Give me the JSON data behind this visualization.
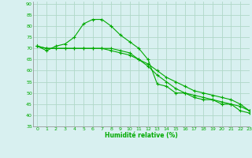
{
  "xlabel": "Humidité relative (%)",
  "bg_color": "#d8f0f0",
  "grid_color": "#b0d8c8",
  "line_color": "#00aa00",
  "xlim": [
    -0.5,
    23
  ],
  "ylim": [
    35,
    91
  ],
  "yticks": [
    35,
    40,
    45,
    50,
    55,
    60,
    65,
    70,
    75,
    80,
    85,
    90
  ],
  "xticks": [
    0,
    1,
    2,
    3,
    4,
    5,
    6,
    7,
    8,
    9,
    10,
    11,
    12,
    13,
    14,
    15,
    16,
    17,
    18,
    19,
    20,
    21,
    22,
    23
  ],
  "series1": [
    71,
    69,
    71,
    72,
    75,
    81,
    83,
    83,
    80,
    76,
    73,
    70,
    65,
    54,
    53,
    50,
    50,
    48,
    47,
    47,
    45,
    45,
    42,
    41
  ],
  "series2": [
    71,
    70,
    70,
    70,
    70,
    70,
    70,
    70,
    70,
    69,
    68,
    65,
    62,
    58,
    55,
    52,
    50,
    49,
    48,
    47,
    46,
    45,
    44,
    42
  ],
  "series3": [
    71,
    70,
    70,
    70,
    70,
    70,
    70,
    70,
    69,
    68,
    67,
    65,
    63,
    60,
    57,
    55,
    53,
    51,
    50,
    49,
    48,
    47,
    45,
    42
  ]
}
